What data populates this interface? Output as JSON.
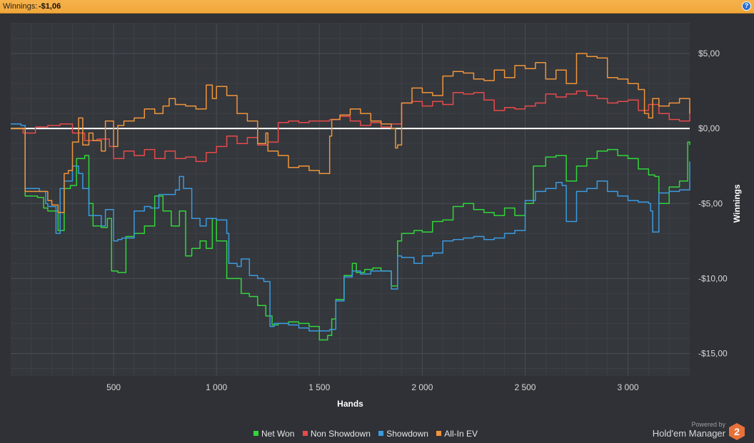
{
  "header": {
    "label": "Winnings:",
    "value": "-$1,06",
    "help_icon": "help-icon"
  },
  "legend": [
    {
      "label": "Net Won",
      "color": "#31d63a"
    },
    {
      "label": "Non Showdown",
      "color": "#e84a4a"
    },
    {
      "label": "Showdown",
      "color": "#3a9be0"
    },
    {
      "label": "All-In EV",
      "color": "#f0953a"
    }
  ],
  "brand": {
    "powered": "Powered by",
    "name": "Hold'em Manager",
    "logo_text": "2"
  },
  "chart_data": {
    "type": "line",
    "xlabel": "Hands",
    "ylabel": "Winnings",
    "x_ticks": [
      500,
      1000,
      1500,
      2000,
      2500,
      3000
    ],
    "x_tick_labels": [
      "500",
      "1 000",
      "1 500",
      "2 000",
      "2 500",
      "3 000"
    ],
    "y_ticks": [
      5,
      0,
      -5,
      -10,
      -15
    ],
    "y_tick_labels": [
      "$5,00",
      "$0,00",
      "-$5,00",
      "-$10,00",
      "-$15,00"
    ],
    "xlim": [
      0,
      3300
    ],
    "ylim": [
      -16.5,
      7
    ],
    "grid": true,
    "legend_position": "bottom",
    "colors": {
      "background": "#34373c",
      "grid": "#4a4d53",
      "zero_line": "#ffffff"
    },
    "series": [
      {
        "name": "Net Won",
        "color": "#31d63a",
        "x": [
          0,
          60,
          70,
          130,
          160,
          180,
          230,
          260,
          290,
          320,
          360,
          380,
          400,
          440,
          470,
          490,
          520,
          560,
          600,
          650,
          700,
          740,
          780,
          820,
          850,
          880,
          920,
          950,
          980,
          1000,
          1050,
          1080,
          1120,
          1160,
          1200,
          1240,
          1270,
          1300,
          1350,
          1400,
          1450,
          1500,
          1540,
          1560,
          1580,
          1620,
          1660,
          1680,
          1720,
          1760,
          1800,
          1850,
          1880,
          1900,
          1960,
          2000,
          2050,
          2100,
          2150,
          2200,
          2250,
          2300,
          2350,
          2400,
          2450,
          2500,
          2540,
          2600,
          2650,
          2700,
          2750,
          2800,
          2850,
          2900,
          2950,
          3000,
          3050,
          3100,
          3130,
          3150,
          3200,
          3250,
          3290,
          3300
        ],
        "y": [
          0,
          0,
          -4.5,
          -4.6,
          -5.3,
          -5.5,
          -6.8,
          -4,
          -3.8,
          -2,
          -1.8,
          -5,
          -6.5,
          -6.6,
          -6,
          -9.5,
          -9.6,
          -7.2,
          -7,
          -6.5,
          -4.5,
          -5.5,
          -6.5,
          -5.5,
          -8.5,
          -8,
          -7.5,
          -8,
          -6,
          -7.5,
          -10,
          -10,
          -11,
          -11.2,
          -11.8,
          -12.5,
          -13.1,
          -13,
          -12.9,
          -13,
          -13.2,
          -14.1,
          -13.8,
          -12.7,
          -11.4,
          -9.8,
          -9,
          -9.6,
          -9.4,
          -9.3,
          -9.5,
          -10.5,
          -7.5,
          -7,
          -6.8,
          -6.9,
          -6.2,
          -6.1,
          -5.2,
          -5,
          -5.4,
          -5.6,
          -5.8,
          -5.3,
          -5.8,
          -5,
          -2.5,
          -1.9,
          -1.8,
          -3.5,
          -2.5,
          -2,
          -1.5,
          -1.4,
          -1.8,
          -2,
          -2.7,
          -3.1,
          -3.2,
          -5,
          -3.9,
          -3.5,
          -0.9,
          -1.1
        ]
      },
      {
        "name": "Non Showdown",
        "color": "#e84a4a",
        "x": [
          0,
          60,
          120,
          180,
          240,
          300,
          360,
          420,
          480,
          500,
          550,
          600,
          650,
          700,
          750,
          800,
          850,
          900,
          950,
          1000,
          1050,
          1100,
          1150,
          1200,
          1250,
          1300,
          1350,
          1400,
          1450,
          1500,
          1550,
          1600,
          1650,
          1700,
          1750,
          1800,
          1850,
          1900,
          1950,
          2000,
          2050,
          2100,
          2150,
          2200,
          2250,
          2300,
          2350,
          2400,
          2450,
          2500,
          2550,
          2600,
          2650,
          2700,
          2750,
          2800,
          2850,
          2900,
          2950,
          3000,
          3050,
          3100,
          3150,
          3200,
          3250,
          3300
        ],
        "y": [
          0,
          -0.3,
          0.1,
          0.2,
          0.3,
          -0.3,
          -0.8,
          -0.7,
          -1.2,
          -2,
          -1.5,
          -1.8,
          -1.4,
          -2,
          -1.5,
          -2,
          -1.9,
          -2.2,
          -1.6,
          -1.2,
          -0.5,
          -1.0,
          -0.6,
          -1.1,
          -0.9,
          0.4,
          0.5,
          0.4,
          0.5,
          0.5,
          0.6,
          0.8,
          0.5,
          0.2,
          0.4,
          0.1,
          0.3,
          1.7,
          1.8,
          1.5,
          1.8,
          1.6,
          2.4,
          2.3,
          2.4,
          1.9,
          1.2,
          1.4,
          1.3,
          1.5,
          1.7,
          2.3,
          2.1,
          2.3,
          2.5,
          2.2,
          2.0,
          1.7,
          1.8,
          1.9,
          1.2,
          1.6,
          1.0,
          0.6,
          0.5,
          1.4
        ]
      },
      {
        "name": "Showdown",
        "color": "#3a9be0",
        "x": [
          0,
          50,
          70,
          140,
          170,
          180,
          220,
          240,
          260,
          300,
          330,
          350,
          380,
          420,
          440,
          460,
          500,
          520,
          540,
          600,
          650,
          680,
          720,
          760,
          800,
          820,
          840,
          880,
          920,
          950,
          1000,
          1050,
          1060,
          1100,
          1120,
          1160,
          1200,
          1230,
          1260,
          1280,
          1300,
          1350,
          1400,
          1450,
          1500,
          1550,
          1580,
          1620,
          1660,
          1700,
          1750,
          1800,
          1850,
          1880,
          1900,
          1960,
          2000,
          2050,
          2100,
          2150,
          2200,
          2250,
          2300,
          2350,
          2400,
          2450,
          2500,
          2550,
          2600,
          2650,
          2680,
          2700,
          2750,
          2800,
          2850,
          2900,
          2950,
          3000,
          3050,
          3100,
          3110,
          3120,
          3150,
          3200,
          3250,
          3300
        ],
        "y": [
          0.3,
          0.2,
          -4.0,
          -4.2,
          -5.0,
          -5.2,
          -7,
          -4,
          -3.5,
          -2.5,
          -3,
          -4,
          -5.8,
          -5.8,
          -6.5,
          -5.4,
          -7.5,
          -7.4,
          -7.3,
          -5.5,
          -5.2,
          -5.3,
          -4.4,
          -4.4,
          -4.1,
          -3.2,
          -4,
          -6,
          -6.5,
          -6.0,
          -6.1,
          -7,
          -9,
          -9.2,
          -8.7,
          -9.8,
          -10,
          -10.2,
          -13.2,
          -13.0,
          -13.0,
          -13.1,
          -13.3,
          -13.5,
          -13.5,
          -13.4,
          -11.5,
          -9.9,
          -9.5,
          -9.7,
          -9.5,
          -9.5,
          -10.7,
          -8.5,
          -8.6,
          -9,
          -8.5,
          -8.3,
          -7.5,
          -7.4,
          -7.3,
          -7.2,
          -7.4,
          -7.3,
          -7.0,
          -6.8,
          -4.8,
          -4.2,
          -4.0,
          -3.6,
          -3.8,
          -6.2,
          -4.2,
          -4.0,
          -3.5,
          -4.2,
          -4.5,
          -4.8,
          -4.9,
          -5.0,
          -5.5,
          -6.9,
          -4.3,
          -4.2,
          -4.1,
          -2.2
        ]
      },
      {
        "name": "All-In EV",
        "color": "#f0953a",
        "x": [
          0,
          60,
          70,
          130,
          180,
          200,
          230,
          260,
          280,
          300,
          330,
          350,
          380,
          400,
          440,
          460,
          500,
          520,
          550,
          600,
          650,
          700,
          740,
          770,
          800,
          850,
          900,
          950,
          980,
          1000,
          1050,
          1100,
          1150,
          1200,
          1240,
          1250,
          1300,
          1350,
          1400,
          1450,
          1500,
          1550,
          1560,
          1600,
          1650,
          1700,
          1750,
          1800,
          1850,
          1870,
          1880,
          1900,
          1950,
          2000,
          2050,
          2100,
          2150,
          2200,
          2250,
          2300,
          2350,
          2400,
          2450,
          2500,
          2550,
          2600,
          2650,
          2700,
          2750,
          2800,
          2850,
          2900,
          2950,
          3000,
          3050,
          3080,
          3100,
          3120,
          3150,
          3200,
          3250,
          3300
        ],
        "y": [
          0,
          0,
          -4.2,
          -4.2,
          -4.8,
          -5.1,
          -5.6,
          -3.0,
          -2.8,
          -0.9,
          0.7,
          -1.1,
          -0.3,
          -0.8,
          -1.5,
          0.5,
          -1.2,
          0.2,
          0.5,
          0.7,
          1.3,
          1.0,
          1.5,
          2.0,
          1.6,
          1.5,
          1.3,
          2.9,
          2.0,
          2.8,
          2.2,
          1.0,
          0.5,
          -1.0,
          -0.3,
          -1.5,
          -1.8,
          -2.6,
          -2.5,
          -2.8,
          -3.0,
          -0.5,
          0.6,
          0.9,
          1.3,
          1.0,
          0.5,
          0.3,
          0.0,
          -1.3,
          -1.1,
          1.7,
          2.7,
          2.4,
          2.2,
          3.5,
          3.8,
          3.7,
          3.3,
          3.2,
          3.9,
          3.4,
          4.2,
          4.0,
          4.4,
          3.3,
          3.9,
          3.0,
          5.0,
          4.8,
          4.7,
          3.4,
          3.3,
          3.0,
          2.6,
          1.0,
          0.7,
          2.0,
          1.5,
          1.7,
          2.0,
          1.0
        ]
      }
    ]
  }
}
